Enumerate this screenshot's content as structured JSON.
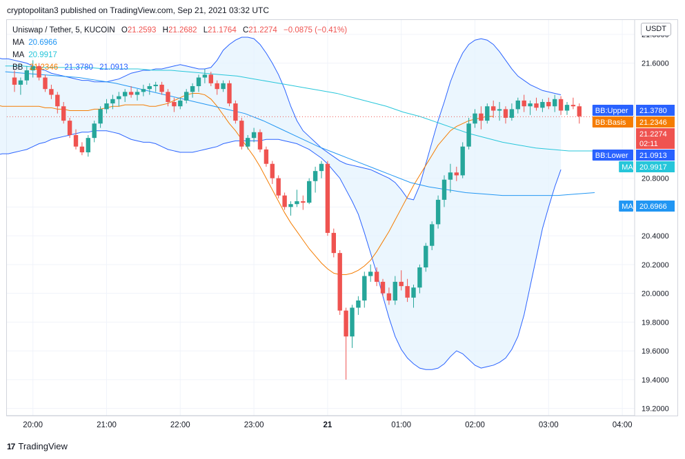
{
  "caption": "cryptopolitan3 published on TradingView.com, Sep 21, 2021 03:32 UTC",
  "legend": {
    "symbol": "Uniswap / Tether, 5, KUCOIN",
    "o_label": "O",
    "o_value": "21.2593",
    "h_label": "H",
    "h_value": "21.2682",
    "l_label": "L",
    "l_value": "21.1764",
    "c_label": "C",
    "c_value": "21.2274",
    "change": "−0.0875 (−0.41%)",
    "ma1_label": "MA",
    "ma1_value": "20.6966",
    "ma2_label": "MA",
    "ma2_value": "20.9917",
    "bb_label": "BB",
    "bb_basis": "21.2346",
    "bb_upper": "21.3780",
    "bb_lower": "21.0913"
  },
  "currency_button": "USDT",
  "footer": {
    "logo": "17",
    "brand": "TradingView"
  },
  "colors": {
    "up": "#26a69a",
    "down": "#ef5350",
    "basis": "#f57c00",
    "band": "#2962ff",
    "band_fill": "#e3f2fd",
    "ma_fast": "#26c6da",
    "ma_slow": "#2196f3"
  },
  "chart_data": {
    "type": "candlestick",
    "y_ticks": [
      "21.8000",
      "21.6000",
      "20.8000",
      "20.6000",
      "20.4000",
      "20.2000",
      "20.0000",
      "19.8000",
      "19.6000",
      "19.4000",
      "19.2000"
    ],
    "y_tick_values": [
      21.8,
      21.6,
      20.8,
      20.6,
      20.4,
      20.2,
      20.0,
      19.8,
      19.6,
      19.4,
      19.2
    ],
    "ylim": [
      19.15,
      21.9
    ],
    "x_ticks": [
      "20:00",
      "21:00",
      "22:00",
      "23:00",
      "21",
      "01:00",
      "02:00",
      "03:00",
      "04:00"
    ],
    "x_tick_index": [
      3,
      15,
      27,
      39,
      51,
      63,
      75,
      87,
      99
    ],
    "n_slots": 100,
    "candles": [
      [
        21.5,
        21.55,
        21.4,
        21.45
      ],
      [
        21.45,
        21.5,
        21.38,
        21.48
      ],
      [
        21.48,
        21.58,
        21.45,
        21.55
      ],
      [
        21.55,
        21.62,
        21.5,
        21.58
      ],
      [
        21.58,
        21.6,
        21.48,
        21.5
      ],
      [
        21.5,
        21.52,
        21.4,
        21.42
      ],
      [
        21.42,
        21.45,
        21.35,
        21.38
      ],
      [
        21.38,
        21.4,
        21.25,
        21.3
      ],
      [
        21.3,
        21.33,
        21.18,
        21.2
      ],
      [
        21.2,
        21.22,
        21.08,
        21.1
      ],
      [
        21.1,
        21.14,
        21.0,
        21.02
      ],
      [
        21.02,
        21.05,
        20.96,
        20.98
      ],
      [
        20.98,
        21.1,
        20.95,
        21.08
      ],
      [
        21.08,
        21.2,
        21.05,
        21.18
      ],
      [
        21.18,
        21.3,
        21.15,
        21.28
      ],
      [
        21.28,
        21.35,
        21.25,
        21.32
      ],
      [
        21.32,
        21.38,
        21.28,
        21.35
      ],
      [
        21.35,
        21.4,
        21.3,
        21.37
      ],
      [
        21.37,
        21.42,
        21.33,
        21.4
      ],
      [
        21.4,
        21.44,
        21.36,
        21.38
      ],
      [
        21.38,
        21.42,
        21.34,
        21.4
      ],
      [
        21.4,
        21.45,
        21.37,
        21.42
      ],
      [
        21.42,
        21.46,
        21.38,
        21.44
      ],
      [
        21.44,
        21.47,
        21.4,
        21.45
      ],
      [
        21.45,
        21.47,
        21.38,
        21.4
      ],
      [
        21.4,
        21.42,
        21.3,
        21.33
      ],
      [
        21.33,
        21.36,
        21.26,
        21.3
      ],
      [
        21.3,
        21.36,
        21.28,
        21.34
      ],
      [
        21.34,
        21.42,
        21.32,
        21.4
      ],
      [
        21.4,
        21.46,
        21.36,
        21.44
      ],
      [
        21.44,
        21.52,
        21.4,
        21.5
      ],
      [
        21.5,
        21.56,
        21.46,
        21.52
      ],
      [
        21.52,
        21.54,
        21.44,
        21.46
      ],
      [
        21.46,
        21.48,
        21.38,
        21.42
      ],
      [
        21.42,
        21.48,
        21.4,
        21.46
      ],
      [
        21.46,
        21.48,
        21.3,
        21.32
      ],
      [
        21.32,
        21.34,
        21.18,
        21.2
      ],
      [
        21.2,
        21.22,
        21.0,
        21.02
      ],
      [
        21.02,
        21.1,
        21.0,
        21.08
      ],
      [
        21.08,
        21.15,
        21.05,
        21.12
      ],
      [
        21.12,
        21.14,
        20.98,
        21.0
      ],
      [
        21.0,
        21.02,
        20.88,
        20.9
      ],
      [
        20.9,
        20.92,
        20.76,
        20.8
      ],
      [
        20.8,
        20.82,
        20.66,
        20.68
      ],
      [
        20.68,
        20.7,
        20.58,
        20.6
      ],
      [
        20.6,
        20.64,
        20.54,
        20.62
      ],
      [
        20.62,
        20.72,
        20.6,
        20.64
      ],
      [
        20.64,
        20.68,
        20.58,
        20.63
      ],
      [
        20.63,
        20.8,
        20.62,
        20.78
      ],
      [
        20.78,
        20.88,
        20.7,
        20.85
      ],
      [
        20.85,
        20.92,
        20.8,
        20.9
      ],
      [
        20.9,
        20.92,
        20.4,
        20.42
      ],
      [
        20.42,
        20.45,
        20.25,
        20.28
      ],
      [
        20.28,
        20.3,
        19.85,
        19.88
      ],
      [
        19.88,
        19.9,
        19.4,
        19.7
      ],
      [
        19.7,
        19.92,
        19.62,
        19.9
      ],
      [
        19.9,
        19.98,
        19.85,
        19.95
      ],
      [
        19.95,
        20.15,
        19.9,
        20.12
      ],
      [
        20.12,
        20.2,
        20.08,
        20.15
      ],
      [
        20.15,
        20.18,
        20.05,
        20.08
      ],
      [
        20.08,
        20.1,
        19.98,
        20.0
      ],
      [
        20.0,
        20.04,
        19.92,
        19.95
      ],
      [
        19.95,
        20.12,
        19.92,
        20.08
      ],
      [
        20.08,
        20.16,
        20.02,
        20.05
      ],
      [
        20.05,
        20.1,
        19.94,
        19.97
      ],
      [
        19.97,
        20.06,
        19.9,
        20.04
      ],
      [
        20.04,
        20.2,
        20.0,
        20.18
      ],
      [
        20.18,
        20.35,
        20.15,
        20.33
      ],
      [
        20.33,
        20.5,
        20.3,
        20.48
      ],
      [
        20.48,
        20.68,
        20.45,
        20.65
      ],
      [
        20.65,
        20.82,
        20.6,
        20.79
      ],
      [
        20.79,
        20.9,
        20.7,
        20.84
      ],
      [
        20.84,
        20.88,
        20.78,
        20.82
      ],
      [
        20.82,
        21.05,
        20.8,
        21.02
      ],
      [
        21.02,
        21.22,
        21.0,
        21.18
      ],
      [
        21.18,
        21.28,
        21.15,
        21.25
      ],
      [
        21.25,
        21.3,
        21.14,
        21.2
      ],
      [
        21.2,
        21.32,
        21.18,
        21.3
      ],
      [
        21.3,
        21.34,
        21.22,
        21.27
      ],
      [
        21.27,
        21.33,
        21.2,
        21.28
      ],
      [
        21.28,
        21.3,
        21.18,
        21.22
      ],
      [
        21.22,
        21.32,
        21.2,
        21.28
      ],
      [
        21.28,
        21.36,
        21.25,
        21.34
      ],
      [
        21.34,
        21.38,
        21.26,
        21.3
      ],
      [
        21.3,
        21.34,
        21.24,
        21.32
      ],
      [
        21.32,
        21.36,
        21.27,
        21.29
      ],
      [
        21.29,
        21.35,
        21.26,
        21.33
      ],
      [
        21.33,
        21.36,
        21.28,
        21.3
      ],
      [
        21.3,
        21.38,
        21.26,
        21.35
      ],
      [
        21.35,
        21.37,
        21.24,
        21.27
      ],
      [
        21.27,
        21.33,
        21.24,
        21.31
      ],
      [
        21.31,
        21.36,
        21.28,
        21.3
      ],
      [
        21.3,
        21.32,
        21.18,
        21.23
      ]
    ],
    "bb_upper": [
      21.64,
      21.64,
      21.63,
      21.63,
      21.62,
      21.61,
      21.6,
      21.58,
      21.56,
      21.55,
      21.53,
      21.52,
      21.51,
      21.5,
      21.49,
      21.48,
      21.48,
      21.47,
      21.47,
      21.47,
      21.48,
      21.49,
      21.51,
      21.53,
      21.54,
      21.55,
      21.55,
      21.56,
      21.56,
      21.57,
      21.58,
      21.59,
      21.58,
      21.57,
      21.56,
      21.56,
      21.57,
      21.62,
      21.69,
      21.73,
      21.76,
      21.78,
      21.78,
      21.77,
      21.73,
      21.67,
      21.6,
      21.52,
      21.42,
      21.3,
      21.2,
      21.13,
      21.09,
      21.05,
      21.01,
      20.98,
      20.95,
      20.92,
      20.9,
      20.89,
      20.88,
      20.87,
      20.86,
      20.84,
      20.82,
      20.8,
      20.77,
      20.72,
      20.66,
      20.65,
      20.75,
      20.9,
      21.05,
      21.2,
      21.33,
      21.47,
      21.58,
      21.67,
      21.73,
      21.76,
      21.77,
      21.76,
      21.73,
      21.68,
      21.62,
      21.56,
      21.51,
      21.48,
      21.45,
      21.43,
      21.41,
      21.4,
      21.39,
      21.38
    ],
    "bb_basis": [
      21.32,
      21.31,
      21.3,
      21.3,
      21.3,
      21.3,
      21.3,
      21.3,
      21.3,
      21.29,
      21.29,
      21.28,
      21.28,
      21.27,
      21.27,
      21.27,
      21.27,
      21.28,
      21.28,
      21.29,
      21.3,
      21.3,
      21.31,
      21.31,
      21.31,
      21.31,
      21.3,
      21.3,
      21.31,
      21.32,
      21.34,
      21.36,
      21.38,
      21.39,
      21.39,
      21.38,
      21.35,
      21.3,
      21.24,
      21.18,
      21.13,
      21.07,
      21.01,
      20.95,
      20.88,
      20.8,
      20.72,
      20.64,
      20.56,
      20.49,
      20.43,
      20.37,
      20.31,
      20.26,
      20.21,
      20.17,
      20.14,
      20.13,
      20.13,
      20.14,
      20.16,
      20.19,
      20.23,
      20.29,
      20.36,
      20.43,
      20.51,
      20.59,
      20.67,
      20.75,
      20.82,
      20.89,
      20.96,
      21.03,
      21.08,
      21.13,
      21.16,
      21.18,
      21.2,
      21.21,
      21.22,
      21.23,
      21.23
    ],
    "bb_lower": [
      21.02,
      21.0,
      20.99,
      20.98,
      20.98,
      20.98,
      20.99,
      21.0,
      21.01,
      21.02,
      21.04,
      21.05,
      21.06,
      21.06,
      21.06,
      21.06,
      21.06,
      21.07,
      21.07,
      21.07,
      21.06,
      21.05,
      21.04,
      21.02,
      21.0,
      20.97,
      20.94,
      20.9,
      20.85,
      20.8,
      20.72,
      20.64,
      20.55,
      20.42,
      20.28,
      20.14,
      19.98,
      19.83,
      19.7,
      19.61,
      19.55,
      19.51,
      19.48,
      19.47,
      19.47,
      19.48,
      19.51,
      19.56,
      19.6,
      19.58,
      19.54,
      19.5,
      19.48,
      19.49,
      19.5,
      19.52,
      19.55,
      19.61,
      19.7,
      19.85,
      20.05,
      20.25,
      20.45,
      20.6,
      20.74,
      20.86,
      20.94,
      21.0,
      21.05,
      21.09
    ],
    "bb_lower_start": 28,
    "bb_basis_start": 12,
    "ma_fast": [
      21.58,
      21.58,
      21.57,
      21.57,
      21.57,
      21.57,
      21.56,
      21.56,
      21.56,
      21.55,
      21.55,
      21.54,
      21.53,
      21.52,
      21.51,
      21.49,
      21.47,
      21.45,
      21.43,
      21.41,
      21.39,
      21.36,
      21.33,
      21.3,
      21.26,
      21.23,
      21.19,
      21.15,
      21.11,
      21.08,
      21.05,
      21.03,
      21.01,
      21.0,
      20.99,
      20.99,
      20.99
    ],
    "ma_fast_step": 2.7,
    "ma_slow": [
      21.54,
      21.53,
      21.52,
      21.51,
      21.5,
      21.48,
      21.46,
      21.43,
      21.4,
      21.37,
      21.34,
      21.31,
      21.28,
      21.25,
      21.2,
      21.14,
      21.08,
      21.02,
      20.97,
      20.92,
      20.87,
      20.82,
      20.77,
      20.74,
      20.72,
      20.7,
      20.69,
      20.68,
      20.68,
      20.68,
      20.68,
      20.69,
      20.7
    ],
    "ma_slow_step": 3.0,
    "last_price_value": 21.2274,
    "price_labels": [
      {
        "name": "BB:Upper",
        "value": "21.3780",
        "num": 21.378,
        "color": "#2962ff"
      },
      {
        "name": "BB:Basis",
        "value": "21.2346",
        "num": 21.2346,
        "color": "#f57c00"
      },
      {
        "name": "",
        "value": "21.2274",
        "sub": "02:11",
        "num": 21.2274,
        "color": "#ef5350"
      },
      {
        "name": "BB:Lower",
        "value": "21.0913",
        "num": 21.0913,
        "color": "#2962ff"
      },
      {
        "name": "MA",
        "value": "20.9917",
        "num": 20.9917,
        "color": "#26c6da"
      },
      {
        "name": "MA",
        "value": "20.6966",
        "num": 20.6966,
        "color": "#2196f3"
      }
    ]
  }
}
